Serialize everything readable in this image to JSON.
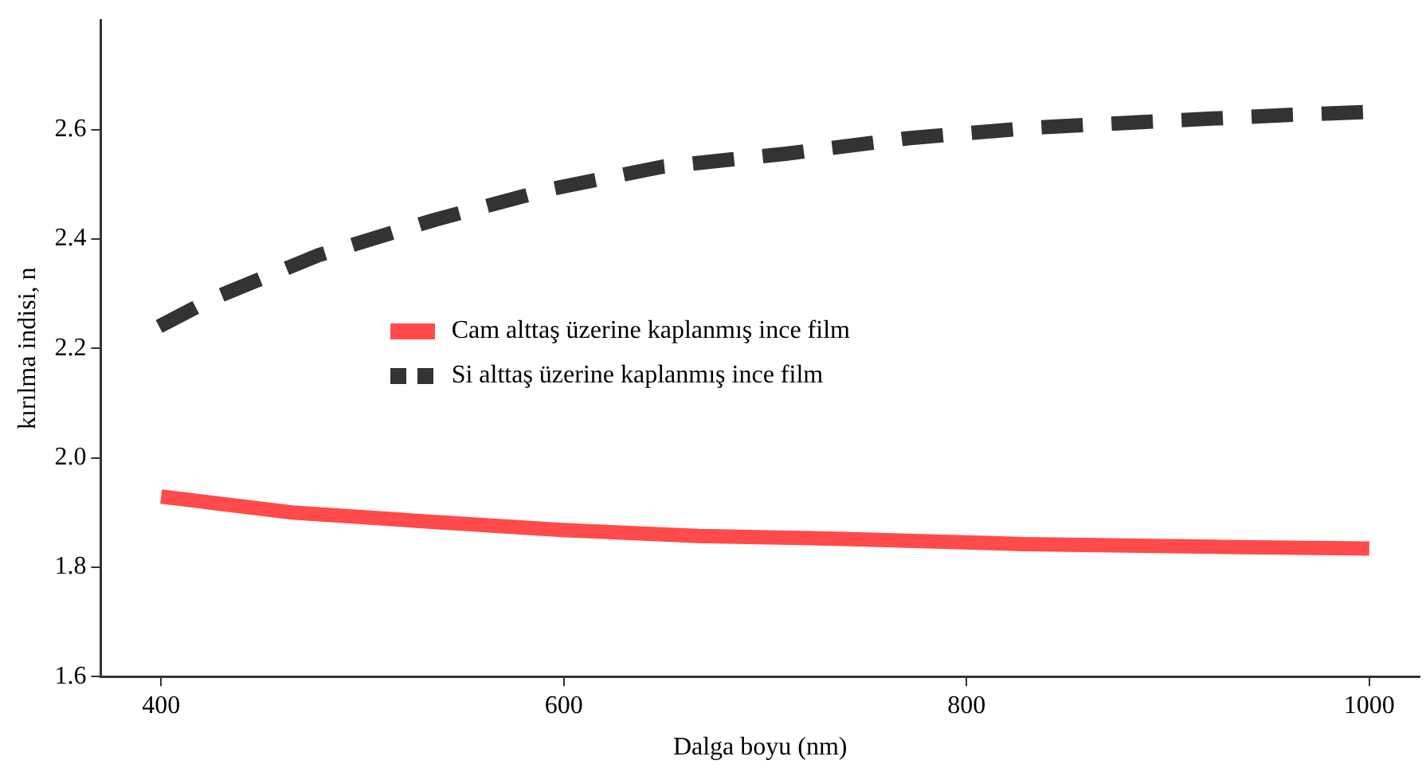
{
  "chart_data": {
    "type": "line",
    "xlabel": "Dalga boyu (nm)",
    "ylabel": "kırılma indisi, n",
    "xlim": [
      370,
      1025
    ],
    "xticks": [
      400,
      600,
      800,
      1000
    ],
    "ylim": [
      1.6,
      2.8
    ],
    "yticks": [
      1.6,
      1.8,
      {
        "value": 2,
        "label": "2.0"
      },
      2.2,
      2.4,
      2.6
    ],
    "grid": false,
    "legend": "center left",
    "marker": "none",
    "series": [
      {
        "name": "Cam alttaş üzerine kaplanmış ince film",
        "color": "#ff4b4b",
        "line_style": "solid",
        "x": [
          400,
          465,
          530,
          599,
          667,
          736,
          829,
          927,
          1000
        ],
        "values": [
          1.929,
          1.9,
          1.884,
          1.868,
          1.857,
          1.852,
          1.842,
          1.837,
          1.834
        ]
      },
      {
        "name": "Si alttaş üzerine kaplanmış ince film",
        "color": "#333333",
        "line_style": "dashed",
        "x": [
          399,
          425,
          478,
          536,
          592,
          649,
          711,
          771,
          832,
          894,
          956,
          999
        ],
        "values": [
          2.24,
          2.29,
          2.37,
          2.435,
          2.49,
          2.532,
          2.556,
          2.584,
          2.603,
          2.615,
          2.626,
          2.632
        ]
      }
    ]
  }
}
